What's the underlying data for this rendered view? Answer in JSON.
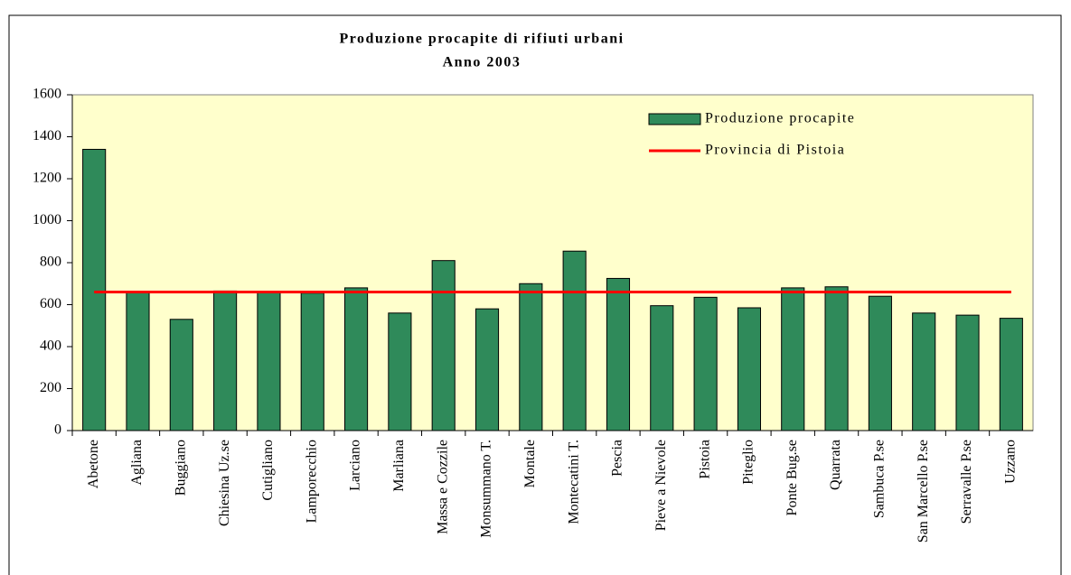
{
  "chart_data": {
    "type": "bar",
    "title": "Produzione procapite di rifiuti urbani",
    "subtitle": "Anno 2003",
    "categories": [
      "Abetone",
      "Agliana",
      "Buggiano",
      "Chiesina Uz.se",
      "Cutigliano",
      "Lamporecchio",
      "Larciano",
      "Marliana",
      "Massa e Cozzile",
      "Monsummano T.",
      "Montale",
      "Montecatini T.",
      "Pescia",
      "Pieve a Nievole",
      "Pistoia",
      "Piteglio",
      "Ponte Bug.se",
      "Quarrata",
      "Sambuca P.se",
      "San Marcello P.se",
      "Serravalle P.se",
      "Uzzano"
    ],
    "series": [
      {
        "name": "Produzione procapite",
        "type": "bar",
        "color": "#2f8a5a",
        "values": [
          1340,
          660,
          530,
          665,
          660,
          655,
          680,
          560,
          810,
          580,
          700,
          855,
          725,
          595,
          635,
          585,
          680,
          685,
          640,
          560,
          550,
          535
        ]
      },
      {
        "name": "Provincia di Pistoia",
        "type": "line",
        "color": "#ff0000",
        "values": [
          660,
          660,
          660,
          660,
          660,
          660,
          660,
          660,
          660,
          660,
          660,
          660,
          660,
          660,
          660,
          660,
          660,
          660,
          660,
          660,
          660,
          660
        ]
      }
    ],
    "ylim": [
      0,
      1600
    ],
    "yticks": [
      0,
      200,
      400,
      600,
      800,
      1000,
      1200,
      1400,
      1600
    ],
    "grid": false,
    "legend": "top-right",
    "background": "#ffffcc"
  }
}
